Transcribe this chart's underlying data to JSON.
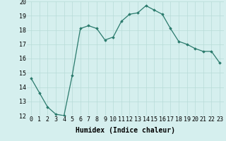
{
  "x": [
    0,
    1,
    2,
    3,
    4,
    5,
    6,
    7,
    8,
    9,
    10,
    11,
    12,
    13,
    14,
    15,
    16,
    17,
    18,
    19,
    20,
    21,
    22,
    23
  ],
  "y": [
    14.6,
    13.6,
    12.6,
    12.1,
    12.0,
    14.8,
    18.1,
    18.3,
    18.1,
    17.3,
    17.5,
    18.6,
    19.1,
    19.2,
    19.7,
    19.4,
    19.1,
    18.1,
    17.2,
    17.0,
    16.7,
    16.5,
    16.5,
    15.7
  ],
  "xlabel": "Humidex (Indice chaleur)",
  "ylim": [
    12,
    20
  ],
  "xlim_min": -0.5,
  "xlim_max": 23.5,
  "yticks": [
    12,
    13,
    14,
    15,
    16,
    17,
    18,
    19,
    20
  ],
  "xticks": [
    0,
    1,
    2,
    3,
    4,
    5,
    6,
    7,
    8,
    9,
    10,
    11,
    12,
    13,
    14,
    15,
    16,
    17,
    18,
    19,
    20,
    21,
    22,
    23
  ],
  "line_color": "#2a7a6c",
  "marker": "D",
  "marker_size": 1.8,
  "bg_color": "#d5efee",
  "grid_color": "#b8dbd8",
  "xlabel_fontsize": 7,
  "tick_fontsize": 6,
  "linewidth": 0.9
}
